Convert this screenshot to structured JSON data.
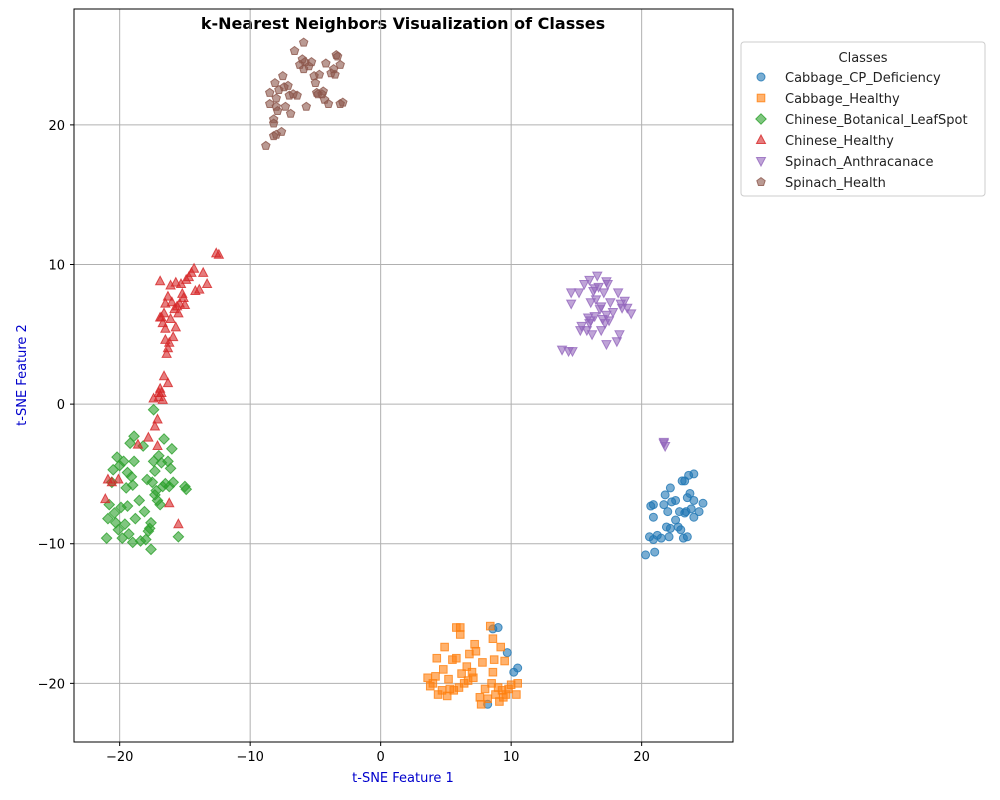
{
  "chart_data": {
    "type": "scatter",
    "title": "k-Nearest Neighbors Visualization of Classes",
    "xlabel": "t-SNE Feature 1",
    "ylabel": "t-SNE Feature 2",
    "xlim": [
      -23.5,
      27
    ],
    "ylim": [
      -24.2,
      28.3
    ],
    "xticks": [
      -20,
      -10,
      0,
      10,
      20
    ],
    "yticks": [
      -20,
      -10,
      0,
      10,
      20
    ],
    "grid": true,
    "legend": {
      "title": "Classes",
      "placement": "outside-upper-right"
    },
    "series": [
      {
        "name": "Cabbage_CP_Deficiency",
        "color": "#1f77b4",
        "marker": "circle",
        "points": [
          [
            8.6,
            -16.1
          ],
          [
            9.0,
            -16.0
          ],
          [
            9.7,
            -17.8
          ],
          [
            10.5,
            -18.9
          ],
          [
            10.2,
            -19.2
          ],
          [
            8.2,
            -21.5
          ],
          [
            20.3,
            -10.8
          ],
          [
            20.6,
            -9.5
          ],
          [
            20.9,
            -9.7
          ],
          [
            21.2,
            -9.4
          ],
          [
            21.5,
            -9.6
          ],
          [
            21.0,
            -10.6
          ],
          [
            20.7,
            -7.3
          ],
          [
            20.9,
            -7.2
          ],
          [
            20.9,
            -8.1
          ],
          [
            21.8,
            -6.5
          ],
          [
            21.7,
            -7.2
          ],
          [
            22.0,
            -7.7
          ],
          [
            22.2,
            -6.0
          ],
          [
            22.3,
            -7.0
          ],
          [
            22.6,
            -6.9
          ],
          [
            22.9,
            -7.7
          ],
          [
            21.9,
            -8.8
          ],
          [
            22.2,
            -8.9
          ],
          [
            22.1,
            -9.5
          ],
          [
            22.6,
            -8.3
          ],
          [
            22.8,
            -8.8
          ],
          [
            23.0,
            -9.0
          ],
          [
            23.2,
            -9.6
          ],
          [
            23.5,
            -9.5
          ],
          [
            23.1,
            -5.5
          ],
          [
            23.3,
            -5.5
          ],
          [
            23.6,
            -5.1
          ],
          [
            24.0,
            -5.0
          ],
          [
            23.5,
            -6.7
          ],
          [
            23.7,
            -6.4
          ],
          [
            24.0,
            -6.9
          ],
          [
            24.7,
            -7.1
          ],
          [
            23.4,
            -7.7
          ],
          [
            23.8,
            -7.5
          ],
          [
            24.0,
            -8.1
          ],
          [
            24.4,
            -7.7
          ],
          [
            23.3,
            -7.8
          ]
        ]
      },
      {
        "name": "Cabbage_Healthy",
        "color": "#ff7f0e",
        "marker": "square",
        "points": [
          [
            3.6,
            -19.6
          ],
          [
            3.8,
            -20.2
          ],
          [
            4.0,
            -20.0
          ],
          [
            4.2,
            -19.5
          ],
          [
            4.3,
            -18.2
          ],
          [
            4.4,
            -20.8
          ],
          [
            4.7,
            -20.5
          ],
          [
            4.8,
            -19.0
          ],
          [
            4.9,
            -17.4
          ],
          [
            5.1,
            -20.9
          ],
          [
            5.2,
            -19.7
          ],
          [
            5.3,
            -20.4
          ],
          [
            5.5,
            -18.3
          ],
          [
            5.6,
            -20.5
          ],
          [
            5.8,
            -18.2
          ],
          [
            5.8,
            -16.0
          ],
          [
            6.0,
            -20.3
          ],
          [
            6.1,
            -16.5
          ],
          [
            6.1,
            -16.0
          ],
          [
            6.2,
            -19.3
          ],
          [
            6.4,
            -20.0
          ],
          [
            6.6,
            -18.8
          ],
          [
            6.7,
            -19.8
          ],
          [
            6.8,
            -17.9
          ],
          [
            7.0,
            -19.2
          ],
          [
            7.1,
            -19.6
          ],
          [
            7.2,
            -17.2
          ],
          [
            7.3,
            -17.7
          ],
          [
            7.6,
            -21.0
          ],
          [
            7.7,
            -21.5
          ],
          [
            7.8,
            -18.5
          ],
          [
            8.0,
            -20.4
          ],
          [
            8.2,
            -21.1
          ],
          [
            8.4,
            -15.9
          ],
          [
            8.5,
            -20.0
          ],
          [
            8.6,
            -19.2
          ],
          [
            8.6,
            -16.8
          ],
          [
            8.7,
            -18.3
          ],
          [
            8.8,
            -20.8
          ],
          [
            9.0,
            -20.3
          ],
          [
            9.1,
            -21.3
          ],
          [
            9.2,
            -17.4
          ],
          [
            9.3,
            -20.5
          ],
          [
            9.5,
            -18.4
          ],
          [
            9.6,
            -20.8
          ],
          [
            9.8,
            -20.4
          ],
          [
            10.0,
            -20.1
          ],
          [
            10.4,
            -20.8
          ],
          [
            10.5,
            -20.0
          ],
          [
            9.4,
            -21.0
          ]
        ]
      },
      {
        "name": "Chinese_Botanical_LeafSpot",
        "color": "#2ca02c",
        "marker": "diamond",
        "points": [
          [
            -21.0,
            -9.6
          ],
          [
            -20.9,
            -8.2
          ],
          [
            -20.8,
            -7.2
          ],
          [
            -20.6,
            -5.6
          ],
          [
            -20.5,
            -4.7
          ],
          [
            -20.4,
            -7.8
          ],
          [
            -20.3,
            -8.5
          ],
          [
            -20.2,
            -3.8
          ],
          [
            -20.1,
            -9.0
          ],
          [
            -20.0,
            -4.4
          ],
          [
            -19.9,
            -7.4
          ],
          [
            -19.8,
            -9.6
          ],
          [
            -19.7,
            -4.1
          ],
          [
            -19.6,
            -8.6
          ],
          [
            -19.5,
            -6.0
          ],
          [
            -19.4,
            -4.9
          ],
          [
            -19.4,
            -7.3
          ],
          [
            -19.3,
            -9.3
          ],
          [
            -19.2,
            -2.8
          ],
          [
            -19.1,
            -5.2
          ],
          [
            -19.0,
            -5.8
          ],
          [
            -19.0,
            -9.9
          ],
          [
            -18.9,
            -4.1
          ],
          [
            -18.9,
            -2.3
          ],
          [
            -18.8,
            -8.2
          ],
          [
            -18.5,
            -6.9
          ],
          [
            -18.4,
            -9.8
          ],
          [
            -18.2,
            -3.0
          ],
          [
            -18.1,
            -7.7
          ],
          [
            -18.0,
            -9.7
          ],
          [
            -17.9,
            -5.4
          ],
          [
            -17.8,
            -9.1
          ],
          [
            -17.7,
            -8.9
          ],
          [
            -17.6,
            -10.4
          ],
          [
            -17.6,
            -8.5
          ],
          [
            -17.5,
            -5.6
          ],
          [
            -17.4,
            -0.4
          ],
          [
            -17.4,
            -4.1
          ],
          [
            -17.3,
            -6.5
          ],
          [
            -17.3,
            -4.8
          ],
          [
            -17.2,
            -6.2
          ],
          [
            -17.1,
            -6.9
          ],
          [
            -17.0,
            -3.7
          ],
          [
            -16.9,
            -7.2
          ],
          [
            -16.8,
            -4.2
          ],
          [
            -16.7,
            -5.9
          ],
          [
            -16.6,
            -2.5
          ],
          [
            -16.5,
            -5.7
          ],
          [
            -16.3,
            -4.1
          ],
          [
            -16.2,
            -5.9
          ],
          [
            -16.1,
            -4.6
          ],
          [
            -16.0,
            -3.2
          ],
          [
            -15.9,
            -5.6
          ],
          [
            -15.5,
            -9.5
          ],
          [
            -15.0,
            -5.9
          ],
          [
            -14.9,
            -6.1
          ]
        ]
      },
      {
        "name": "Chinese_Healthy",
        "color": "#d62728",
        "marker": "triangle-up",
        "points": [
          [
            -21.1,
            -6.8
          ],
          [
            -20.9,
            -5.4
          ],
          [
            -20.6,
            -5.6
          ],
          [
            -20.1,
            -5.4
          ],
          [
            -18.6,
            -2.9
          ],
          [
            -17.8,
            -2.4
          ],
          [
            -17.4,
            0.4
          ],
          [
            -17.3,
            -1.6
          ],
          [
            -17.1,
            -3.0
          ],
          [
            -17.1,
            -1.1
          ],
          [
            -17.0,
            0.5
          ],
          [
            -17.0,
            0.8
          ],
          [
            -16.9,
            1.1
          ],
          [
            -16.8,
            0.8
          ],
          [
            -16.7,
            0.3
          ],
          [
            -16.6,
            2.0
          ],
          [
            -16.3,
            1.5
          ],
          [
            -16.2,
            -7.1
          ],
          [
            -15.5,
            -8.6
          ],
          [
            -16.9,
            8.8
          ],
          [
            -16.9,
            6.2
          ],
          [
            -16.7,
            5.8
          ],
          [
            -16.6,
            6.5
          ],
          [
            -16.5,
            4.6
          ],
          [
            -16.5,
            5.4
          ],
          [
            -16.4,
            3.6
          ],
          [
            -16.3,
            7.7
          ],
          [
            -16.3,
            4.0
          ],
          [
            -16.2,
            4.4
          ],
          [
            -16.1,
            8.5
          ],
          [
            -16.1,
            6.1
          ],
          [
            -16.0,
            7.3
          ],
          [
            -15.9,
            4.8
          ],
          [
            -15.8,
            6.8
          ],
          [
            -15.7,
            5.5
          ],
          [
            -15.7,
            8.7
          ],
          [
            -15.6,
            7.0
          ],
          [
            -15.5,
            6.5
          ],
          [
            -15.4,
            7.2
          ],
          [
            -15.3,
            8.6
          ],
          [
            -15.2,
            7.9
          ],
          [
            -15.1,
            7.6
          ],
          [
            -15.0,
            7.1
          ],
          [
            -14.9,
            8.9
          ],
          [
            -14.7,
            9.1
          ],
          [
            -14.5,
            9.4
          ],
          [
            -14.3,
            9.7
          ],
          [
            -14.2,
            8.1
          ],
          [
            -13.9,
            8.2
          ],
          [
            -13.6,
            9.4
          ],
          [
            -13.3,
            8.6
          ],
          [
            -12.6,
            10.8
          ],
          [
            -12.4,
            10.7
          ],
          [
            -16.8,
            6.2
          ],
          [
            -16.5,
            7.2
          ]
        ]
      },
      {
        "name": "Spinach_Anthracanace",
        "color": "#9467bd",
        "marker": "triangle-down",
        "points": [
          [
            21.7,
            -2.8
          ],
          [
            21.8,
            -3.0
          ],
          [
            21.7,
            -2.7
          ],
          [
            13.9,
            3.9
          ],
          [
            14.4,
            3.8
          ],
          [
            14.7,
            3.8
          ],
          [
            14.6,
            7.2
          ],
          [
            14.6,
            8.0
          ],
          [
            15.2,
            8.0
          ],
          [
            15.3,
            5.3
          ],
          [
            15.4,
            5.6
          ],
          [
            15.6,
            8.6
          ],
          [
            15.8,
            5.3
          ],
          [
            15.9,
            6.2
          ],
          [
            16.0,
            8.9
          ],
          [
            16.1,
            6.0
          ],
          [
            16.1,
            7.3
          ],
          [
            16.2,
            5.0
          ],
          [
            16.3,
            8.1
          ],
          [
            16.4,
            6.3
          ],
          [
            16.5,
            7.5
          ],
          [
            16.6,
            9.2
          ],
          [
            16.7,
            8.4
          ],
          [
            16.8,
            6.8
          ],
          [
            16.9,
            7.0
          ],
          [
            16.9,
            5.3
          ],
          [
            17.0,
            6.1
          ],
          [
            17.1,
            8.0
          ],
          [
            17.2,
            5.8
          ],
          [
            17.3,
            8.8
          ],
          [
            17.3,
            6.4
          ],
          [
            17.3,
            4.3
          ],
          [
            17.4,
            8.6
          ],
          [
            17.5,
            6.0
          ],
          [
            17.6,
            7.3
          ],
          [
            17.8,
            6.6
          ],
          [
            18.1,
            4.5
          ],
          [
            18.2,
            8.0
          ],
          [
            18.3,
            5.0
          ],
          [
            18.4,
            7.2
          ],
          [
            18.5,
            6.9
          ],
          [
            18.7,
            7.4
          ],
          [
            18.9,
            6.9
          ],
          [
            19.2,
            6.5
          ],
          [
            16.4,
            8.3
          ],
          [
            16.0,
            5.8
          ]
        ]
      },
      {
        "name": "Spinach_Health",
        "color": "#8c564b",
        "marker": "pentagon",
        "points": [
          [
            -8.8,
            18.5
          ],
          [
            -8.5,
            21.5
          ],
          [
            -8.5,
            22.3
          ],
          [
            -8.2,
            19.2
          ],
          [
            -8.2,
            20.1
          ],
          [
            -8.2,
            20.4
          ],
          [
            -8.1,
            23.0
          ],
          [
            -8.0,
            21.3
          ],
          [
            -8.0,
            21.9
          ],
          [
            -8.0,
            19.3
          ],
          [
            -7.9,
            21.0
          ],
          [
            -7.8,
            22.5
          ],
          [
            -7.6,
            19.5
          ],
          [
            -7.5,
            23.5
          ],
          [
            -7.4,
            22.7
          ],
          [
            -7.3,
            21.3
          ],
          [
            -7.1,
            22.8
          ],
          [
            -7.0,
            22.1
          ],
          [
            -6.9,
            20.8
          ],
          [
            -6.7,
            22.2
          ],
          [
            -6.6,
            25.3
          ],
          [
            -6.4,
            22.1
          ],
          [
            -6.2,
            24.3
          ],
          [
            -6.0,
            24.7
          ],
          [
            -5.9,
            25.9
          ],
          [
            -5.9,
            24.0
          ],
          [
            -5.8,
            24.5
          ],
          [
            -5.7,
            21.3
          ],
          [
            -5.5,
            24.2
          ],
          [
            -5.3,
            24.5
          ],
          [
            -5.1,
            23.5
          ],
          [
            -5.0,
            23.0
          ],
          [
            -4.9,
            22.3
          ],
          [
            -4.8,
            22.2
          ],
          [
            -4.7,
            23.6
          ],
          [
            -4.5,
            22.2
          ],
          [
            -4.4,
            22.4
          ],
          [
            -4.3,
            21.8
          ],
          [
            -4.2,
            24.4
          ],
          [
            -4.0,
            21.5
          ],
          [
            -3.8,
            23.7
          ],
          [
            -3.6,
            24.0
          ],
          [
            -3.5,
            23.6
          ],
          [
            -3.4,
            25.0
          ],
          [
            -3.3,
            24.9
          ],
          [
            -3.1,
            24.3
          ],
          [
            -3.1,
            21.5
          ],
          [
            -2.9,
            21.6
          ]
        ]
      }
    ]
  }
}
